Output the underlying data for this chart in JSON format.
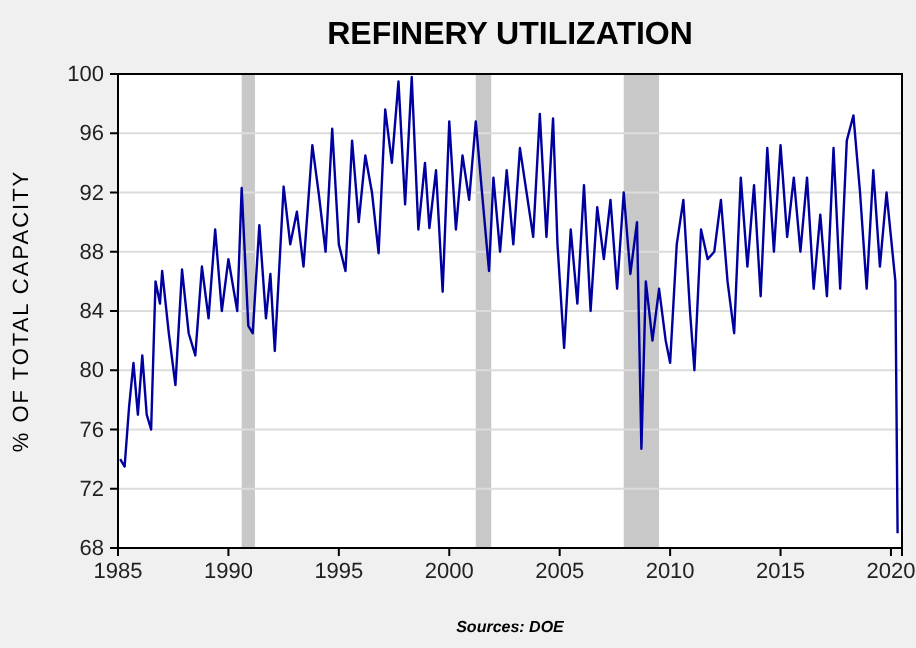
{
  "chart_data": {
    "type": "line",
    "title": "REFINERY UTILIZATION",
    "ylabel": "% OF TOTAL CAPACITY",
    "annotations": [
      "Sources:  DOE"
    ],
    "x": [
      1985.1,
      1985.3,
      1985.5,
      1985.7,
      1985.9,
      1986.1,
      1986.3,
      1986.5,
      1986.7,
      1986.9,
      1987.0,
      1987.3,
      1987.6,
      1987.9,
      1988.2,
      1988.5,
      1988.8,
      1989.1,
      1989.4,
      1989.7,
      1990.0,
      1990.4,
      1990.6,
      1990.9,
      1991.1,
      1991.4,
      1991.7,
      1991.9,
      1992.1,
      1992.5,
      1992.8,
      1993.1,
      1993.4,
      1993.8,
      1994.1,
      1994.4,
      1994.7,
      1995.0,
      1995.3,
      1995.6,
      1995.9,
      1996.2,
      1996.5,
      1996.8,
      1997.1,
      1997.4,
      1997.7,
      1998.0,
      1998.3,
      1998.6,
      1998.9,
      1999.1,
      1999.4,
      1999.7,
      2000.0,
      2000.3,
      2000.6,
      2000.9,
      2001.2,
      2001.5,
      2001.8,
      2002.0,
      2002.3,
      2002.6,
      2002.9,
      2003.2,
      2003.5,
      2003.8,
      2004.1,
      2004.4,
      2004.7,
      2004.9,
      2005.2,
      2005.5,
      2005.8,
      2006.1,
      2006.4,
      2006.7,
      2007.0,
      2007.3,
      2007.6,
      2007.9,
      2008.2,
      2008.5,
      2008.7,
      2008.9,
      2009.2,
      2009.5,
      2009.8,
      2010.0,
      2010.3,
      2010.6,
      2010.9,
      2011.1,
      2011.4,
      2011.7,
      2012.0,
      2012.3,
      2012.6,
      2012.9,
      2013.2,
      2013.5,
      2013.8,
      2014.1,
      2014.4,
      2014.7,
      2015.0,
      2015.3,
      2015.6,
      2015.9,
      2016.2,
      2016.5,
      2016.8,
      2017.1,
      2017.4,
      2017.7,
      2018.0,
      2018.3,
      2018.6,
      2018.9,
      2019.2,
      2019.5,
      2019.8,
      2020.0,
      2020.2,
      2020.3
    ],
    "series": [
      {
        "color": "#0000a0",
        "values": [
          74,
          73.5,
          77.5,
          80.5,
          77,
          81,
          77,
          76,
          86,
          84.5,
          86.7,
          82.5,
          79,
          86.8,
          82.5,
          81,
          87,
          83.5,
          89.5,
          84,
          87.5,
          84,
          92.3,
          83,
          82.5,
          89.8,
          83.5,
          86.5,
          81.3,
          92.4,
          88.5,
          90.7,
          87,
          95.2,
          91.8,
          88,
          96.3,
          88.5,
          86.7,
          95.5,
          90,
          94.5,
          92,
          87.9,
          97.6,
          94,
          99.5,
          91.2,
          99.8,
          89.5,
          94,
          89.6,
          93.5,
          85.3,
          96.8,
          89.5,
          94.5,
          91.5,
          96.8,
          91.7,
          86.7,
          93,
          88,
          93.5,
          88.5,
          95,
          92,
          89,
          97.3,
          89,
          97,
          88.5,
          81.5,
          89.5,
          84.5,
          92.5,
          84,
          91,
          87.5,
          91.5,
          85.5,
          92,
          86.5,
          90,
          74.7,
          86,
          82,
          85.5,
          82,
          80.5,
          88.5,
          91.5,
          84,
          80,
          89.5,
          87.5,
          88,
          91.5,
          86,
          82.5,
          93,
          87,
          92.5,
          85,
          95,
          88,
          95.2,
          89,
          93,
          88,
          93,
          85.5,
          90.5,
          85,
          95,
          85.5,
          95.5,
          97.2,
          92,
          85.5,
          93.5,
          87,
          92,
          89,
          86,
          69
        ]
      }
    ],
    "xlim": [
      1985,
      2020.5
    ],
    "xticks": [
      1985,
      1990,
      1995,
      2000,
      2005,
      2010,
      2015,
      2020
    ],
    "ylim": [
      68,
      100
    ],
    "yticks": [
      68,
      72,
      76,
      80,
      84,
      88,
      92,
      96,
      100
    ],
    "grid": "y",
    "marker": "none",
    "line_style": "solid",
    "bands": [
      {
        "axis": "x",
        "from": 1990.6,
        "to": 1991.2,
        "color": "#c8c8c8"
      },
      {
        "axis": "x",
        "from": 2001.2,
        "to": 2001.9,
        "color": "#c8c8c8"
      },
      {
        "axis": "x",
        "from": 2007.9,
        "to": 2009.5,
        "color": "#c8c8c8"
      }
    ]
  }
}
